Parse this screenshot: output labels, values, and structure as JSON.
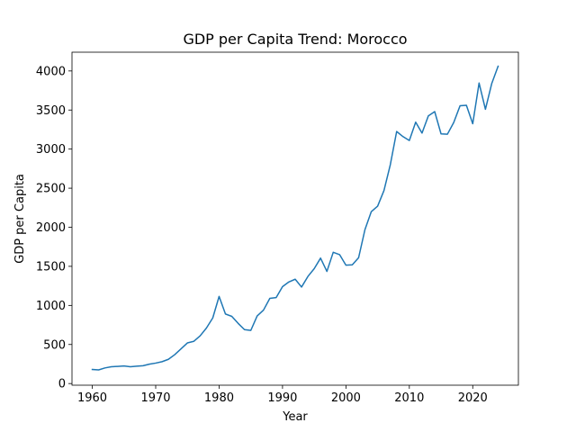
{
  "chart_data": {
    "type": "line",
    "title": "GDP per Capita Trend: Morocco",
    "xlabel": "Year",
    "ylabel": "GDP per Capita",
    "xlim": [
      1956.8,
      2027.2
    ],
    "ylim": [
      -21,
      4240
    ],
    "xticks": [
      1960,
      1970,
      1980,
      1990,
      2000,
      2010,
      2020
    ],
    "yticks": [
      0,
      500,
      1000,
      1500,
      2000,
      2500,
      3000,
      3500,
      4000
    ],
    "grid": false,
    "line_color": "#1f77b4",
    "series": [
      {
        "x": [
          1960,
          1961,
          1962,
          1963,
          1964,
          1965,
          1966,
          1967,
          1968,
          1969,
          1970,
          1971,
          1972,
          1973,
          1974,
          1975,
          1976,
          1977,
          1978,
          1979,
          1980,
          1981,
          1982,
          1983,
          1984,
          1985,
          1986,
          1987,
          1988,
          1989,
          1990,
          1991,
          1992,
          1993,
          1994,
          1995,
          1996,
          1997,
          1998,
          1999,
          2000,
          2001,
          2002,
          2003,
          2004,
          2005,
          2006,
          2007,
          2008,
          2009,
          2010,
          2011,
          2012,
          2013,
          2014,
          2015,
          2016,
          2017,
          2018,
          2019,
          2020,
          2021,
          2022,
          2023,
          2024
        ],
        "values": [
          180,
          175,
          200,
          215,
          220,
          225,
          215,
          222,
          228,
          248,
          262,
          280,
          310,
          370,
          445,
          520,
          540,
          610,
          710,
          840,
          1115,
          890,
          860,
          770,
          690,
          680,
          865,
          940,
          1090,
          1100,
          1240,
          1300,
          1335,
          1235,
          1370,
          1470,
          1605,
          1435,
          1680,
          1650,
          1515,
          1520,
          1610,
          1970,
          2200,
          2270,
          2470,
          2800,
          3225,
          3160,
          3110,
          3345,
          3205,
          3425,
          3480,
          3195,
          3190,
          3340,
          3555,
          3560,
          3325,
          3845,
          3510,
          3840,
          4060
        ]
      }
    ]
  }
}
